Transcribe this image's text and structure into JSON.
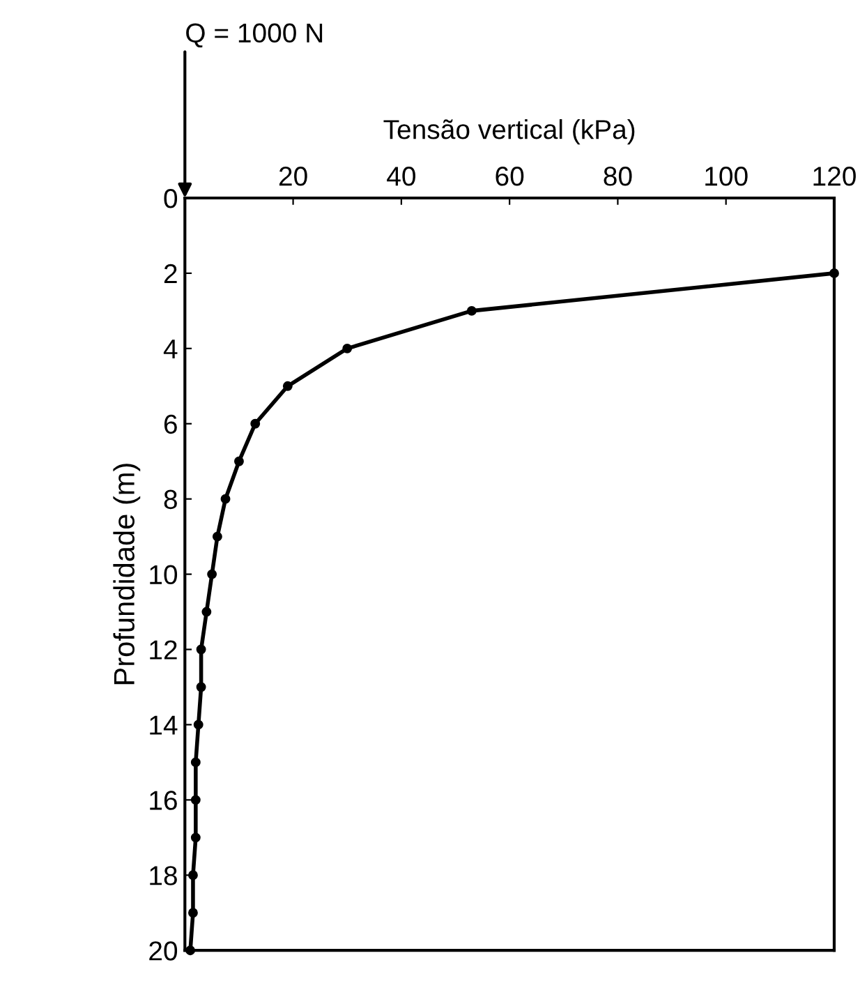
{
  "chart_data": {
    "type": "line",
    "xlabel": "Tensão vertical (kPa)",
    "ylabel": "Profundidade (m)",
    "series": [
      {
        "color": "#000000",
        "x": [
          120,
          53,
          30,
          19,
          13,
          10,
          7.5,
          6,
          5,
          4,
          3,
          3,
          2.5,
          2,
          2,
          2,
          1.5,
          1.5,
          1
        ],
        "values": [
          2,
          3,
          4,
          5,
          6,
          7,
          8,
          9,
          10,
          11,
          12,
          13,
          14,
          15,
          16,
          17,
          18,
          19,
          20
        ]
      }
    ],
    "xlim": [
      0,
      120
    ],
    "xticks": [
      {
        "value": 0,
        "label": null
      },
      20,
      40,
      60,
      80,
      100,
      120
    ],
    "ylim": [
      20,
      0
    ],
    "yticks": [
      0,
      2,
      4,
      6,
      8,
      10,
      12,
      14,
      16,
      18,
      20
    ],
    "annotations": [
      "Q = 1000 N"
    ],
    "marker": "circle",
    "line_style": "solid",
    "grid": false,
    "legend": false
  }
}
